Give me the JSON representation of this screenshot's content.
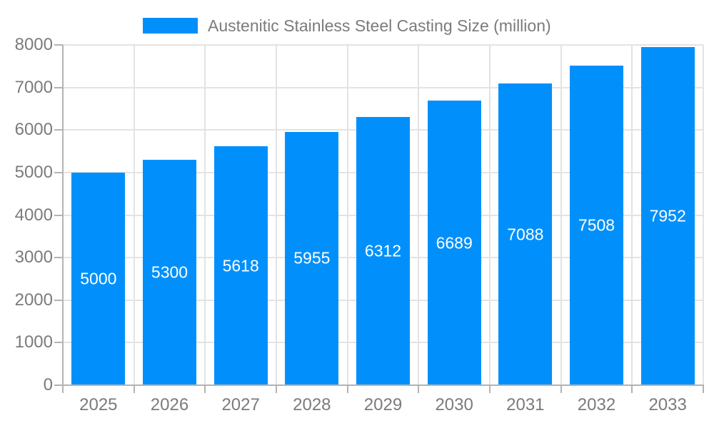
{
  "chart_data": {
    "type": "bar",
    "title": "Austenitic Stainless Steel Casting Size (million)",
    "categories": [
      "2025",
      "2026",
      "2027",
      "2028",
      "2029",
      "2030",
      "2031",
      "2032",
      "2033"
    ],
    "values": [
      5000,
      5300,
      5618,
      5955,
      6312,
      6689,
      7088,
      7508,
      7952
    ],
    "xlabel": "",
    "ylabel": "",
    "ylim": [
      0,
      8000
    ],
    "y_ticks": [
      0,
      1000,
      2000,
      3000,
      4000,
      5000,
      6000,
      7000,
      8000
    ],
    "grid": "both",
    "legend_position": "top",
    "bar_label_position": "inside-middle"
  },
  "colors": {
    "bar": "#0190fb",
    "grid": "#e3e3e3",
    "axis": "#b3b3b3",
    "text": "#7b7b7b",
    "bar_label": "#ffffff",
    "background": "#ffffff"
  }
}
